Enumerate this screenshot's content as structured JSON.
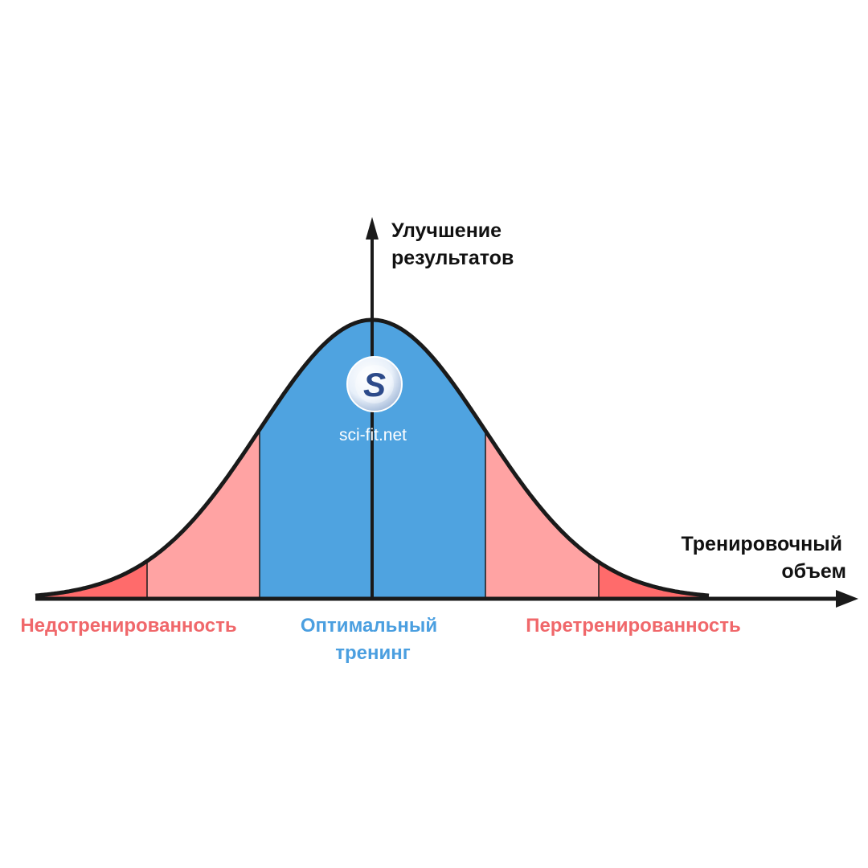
{
  "axes": {
    "y_label_line1": "Улучшение",
    "y_label_line2": "результатов",
    "x_label_line1": "Тренировочный",
    "x_label_line2": "объем"
  },
  "zones": {
    "under": {
      "label": "Недотренированность"
    },
    "optimal": {
      "label_line1": "Оптимальный",
      "label_line2": "тренинг"
    },
    "over": {
      "label": "Перетренированность"
    }
  },
  "logo": {
    "letter": "S",
    "text": "sci-fit.net"
  },
  "colors": {
    "under_dark": "#ff6b6b",
    "under_light": "#ffa3a3",
    "optimal": "#4fa3e0",
    "label_red": "#f0686b",
    "label_blue": "#4b9fe0",
    "axis": "#1a1a1a",
    "curve": "#1a1a1a"
  }
}
